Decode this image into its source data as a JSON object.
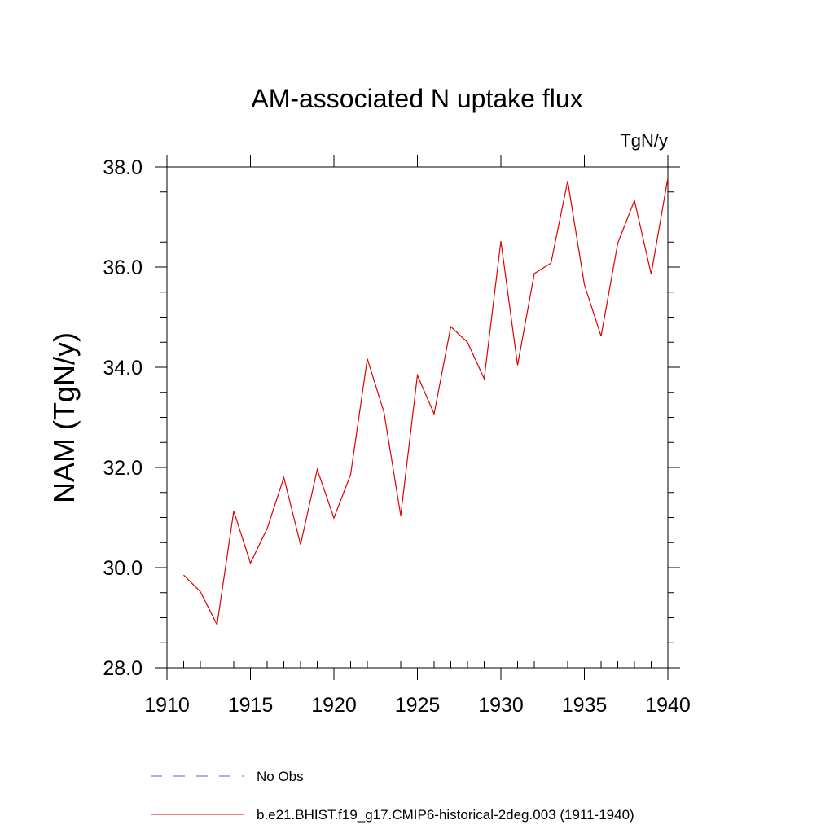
{
  "chart_data": {
    "type": "line",
    "title": "AM-associated N uptake flux",
    "units": "TgN/y",
    "xlabel": "",
    "ylabel": "NAM  (TgN/y)",
    "xlim": [
      1910,
      1940
    ],
    "ylim": [
      28.0,
      38.0
    ],
    "x_ticks": [
      1910,
      1915,
      1920,
      1925,
      1930,
      1935,
      1940
    ],
    "x_tick_labels": [
      "1910",
      "1915",
      "1920",
      "1925",
      "1930",
      "1935",
      "1940"
    ],
    "y_ticks": [
      28.0,
      30.0,
      32.0,
      34.0,
      36.0,
      38.0
    ],
    "y_tick_labels": [
      "28.0",
      "30.0",
      "32.0",
      "34.0",
      "36.0",
      "38.0"
    ],
    "grid": false,
    "legend_position": "bottom",
    "series": [
      {
        "name": "b.e21.BHIST.f19_g17.CMIP6-historical-2deg.003 (1911-1940)",
        "color": "#e00000",
        "style": "solid",
        "x": [
          1911,
          1912,
          1913,
          1914,
          1915,
          1916,
          1917,
          1918,
          1919,
          1920,
          1921,
          1922,
          1923,
          1924,
          1925,
          1926,
          1927,
          1928,
          1929,
          1930,
          1931,
          1932,
          1933,
          1934,
          1935,
          1936,
          1937,
          1938,
          1939,
          1940
        ],
        "values": [
          29.85,
          29.52,
          28.86,
          31.13,
          30.09,
          30.78,
          31.8,
          30.46,
          31.96,
          30.99,
          31.86,
          34.17,
          33.1,
          31.04,
          33.84,
          33.07,
          34.81,
          34.5,
          33.77,
          36.52,
          34.04,
          35.87,
          36.08,
          37.72,
          35.65,
          34.62,
          36.48,
          37.33,
          35.86,
          37.78
        ]
      }
    ],
    "legend": [
      {
        "label": "No Obs",
        "color": "#6a5acd",
        "style": "dashed"
      },
      {
        "label": "b.e21.BHIST.f19_g17.CMIP6-historical-2deg.003 (1911-1940)",
        "color": "#e00000",
        "style": "solid"
      }
    ]
  }
}
